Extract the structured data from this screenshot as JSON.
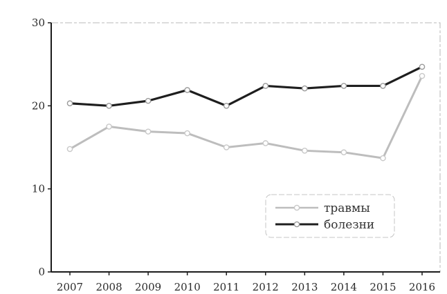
{
  "chart_data": {
    "type": "line",
    "title": "",
    "xlabel": "",
    "ylabel": "",
    "categories": [
      "2007",
      "2008",
      "2009",
      "2010",
      "2011",
      "2012",
      "2013",
      "2014",
      "2015",
      "2016"
    ],
    "y_ticks": [
      "0",
      "10",
      "20",
      "30"
    ],
    "ylim": [
      0,
      30
    ],
    "grid": false,
    "legend_position": "bottom-right",
    "series": [
      {
        "name": "травмы",
        "values": [
          14.8,
          17.5,
          16.9,
          16.7,
          15.0,
          15.5,
          14.6,
          14.4,
          13.7,
          23.6
        ],
        "color": "#bdbdbd",
        "marker": "circle"
      },
      {
        "name": "болезни",
        "values": [
          20.3,
          20.0,
          20.6,
          21.9,
          20.0,
          22.4,
          22.1,
          22.4,
          22.4,
          24.7
        ],
        "color": "#1e1e1e",
        "marker": "circle"
      }
    ]
  }
}
